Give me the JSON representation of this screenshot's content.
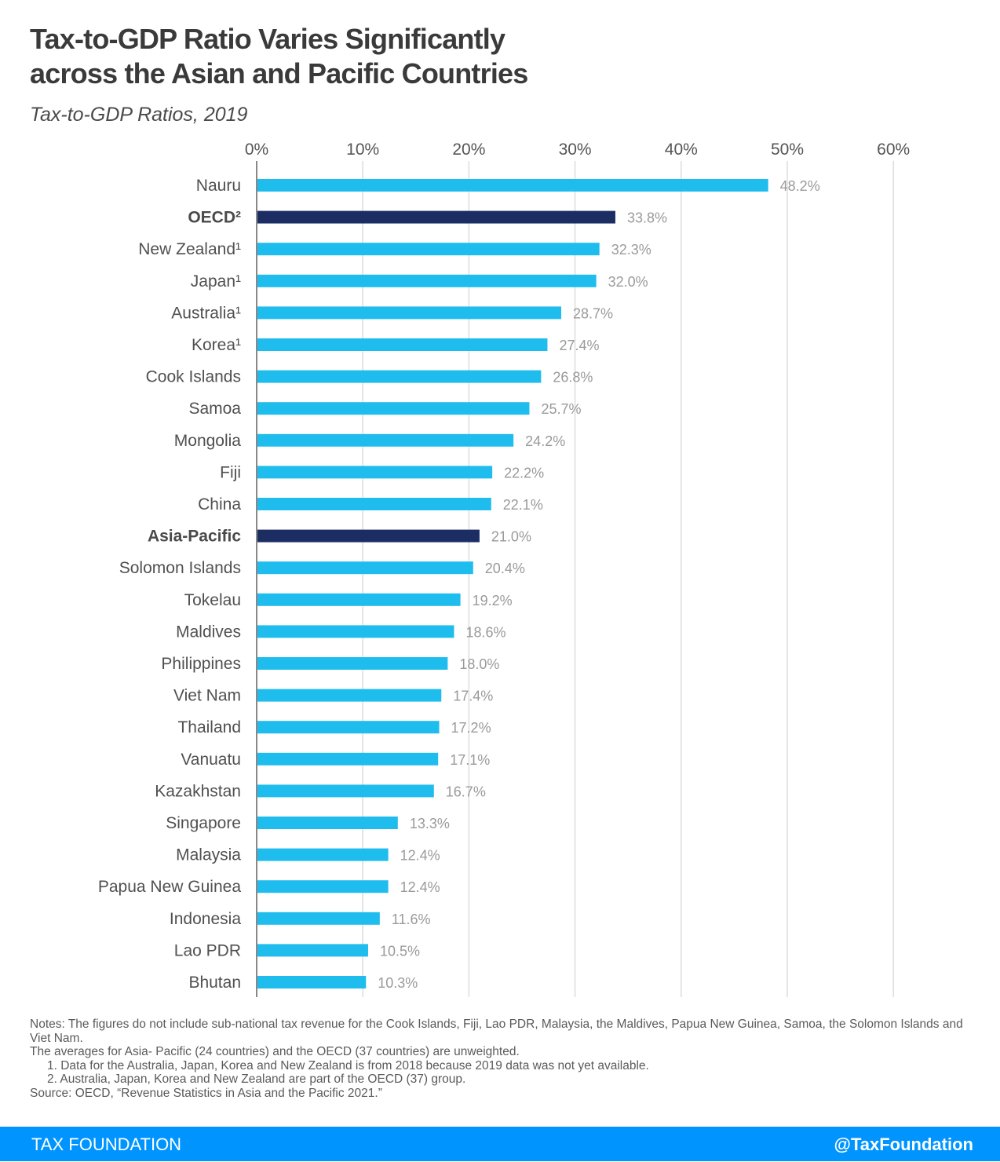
{
  "header": {
    "title_line1": "Tax-to-GDP Ratio Varies Significantly",
    "title_line2": "across the Asian and Pacific Countries",
    "subtitle": "Tax-to-GDP Ratios, 2019"
  },
  "colors": {
    "country_bar": "#1ebdee",
    "average_bar": "#1b2d63",
    "gridline": "#dddddd",
    "axis": "#888888",
    "footer_bg": "#0094ff"
  },
  "chart_data": {
    "type": "bar",
    "orientation": "horizontal",
    "title": "Tax-to-GDP Ratio Varies Significantly across the Asian and Pacific Countries",
    "subtitle": "Tax-to-GDP Ratios, 2019",
    "xlabel": "",
    "ylabel": "",
    "xlim": [
      0,
      60
    ],
    "x_ticks": [
      "0%",
      "10%",
      "20%",
      "30%",
      "40%",
      "50%",
      "60%"
    ],
    "x_tick_values": [
      0,
      10,
      20,
      30,
      40,
      50,
      60
    ],
    "x_axis_position": "top",
    "grid": true,
    "legend": "none",
    "categories": [
      "Nauru",
      "OECD²",
      "New Zealand¹",
      "Japan¹",
      "Australia¹",
      "Korea¹",
      "Cook Islands",
      "Samoa",
      "Mongolia",
      "Fiji",
      "China",
      "Asia-Pacific",
      "Solomon Islands",
      "Tokelau",
      "Maldives",
      "Philippines",
      "Viet Nam",
      "Thailand",
      "Vanuatu",
      "Kazakhstan",
      "Singapore",
      "Malaysia",
      "Papua New Guinea",
      "Indonesia",
      "Lao PDR",
      "Bhutan"
    ],
    "values": [
      48.2,
      33.8,
      32.3,
      32.0,
      28.7,
      27.4,
      26.8,
      25.7,
      24.2,
      22.2,
      22.1,
      21.0,
      20.4,
      19.2,
      18.6,
      18.0,
      17.4,
      17.2,
      17.1,
      16.7,
      13.3,
      12.4,
      12.4,
      11.6,
      10.5,
      10.3
    ],
    "value_labels": [
      "48.2%",
      "33.8%",
      "32.3%",
      "32.0%",
      "28.7%",
      "27.4%",
      "26.8%",
      "25.7%",
      "24.2%",
      "22.2%",
      "22.1%",
      "21.0%",
      "20.4%",
      "19.2%",
      "18.6%",
      "18.0%",
      "17.4%",
      "17.2%",
      "17.1%",
      "16.7%",
      "13.3%",
      "12.4%",
      "12.4%",
      "11.6%",
      "10.5%",
      "10.3%"
    ],
    "highlighted": [
      false,
      true,
      false,
      false,
      false,
      false,
      false,
      false,
      false,
      false,
      false,
      true,
      false,
      false,
      false,
      false,
      false,
      false,
      false,
      false,
      false,
      false,
      false,
      false,
      false,
      false
    ]
  },
  "notes": {
    "line1": "Notes: The figures do not include sub-national tax revenue for the Cook Islands, Fiji, Lao PDR, Malaysia, the Maldives, Papua New Guinea, Samoa, the Solomon Islands and Viet Nam.",
    "line2": "The averages for Asia- Pacific (24 countries) and the OECD (37 countries) are unweighted.",
    "footnote1": "1. Data for the Australia, Japan, Korea and New Zealand is from 2018 because 2019 data was not yet available.",
    "footnote2": "2. Australia, Japan, Korea and New Zealand are part of the OECD (37) group.",
    "source": "Source: OECD, “Revenue Statistics in Asia and the Pacific 2021.”"
  },
  "footer": {
    "brand": "TAX FOUNDATION",
    "handle": "@TaxFoundation"
  }
}
